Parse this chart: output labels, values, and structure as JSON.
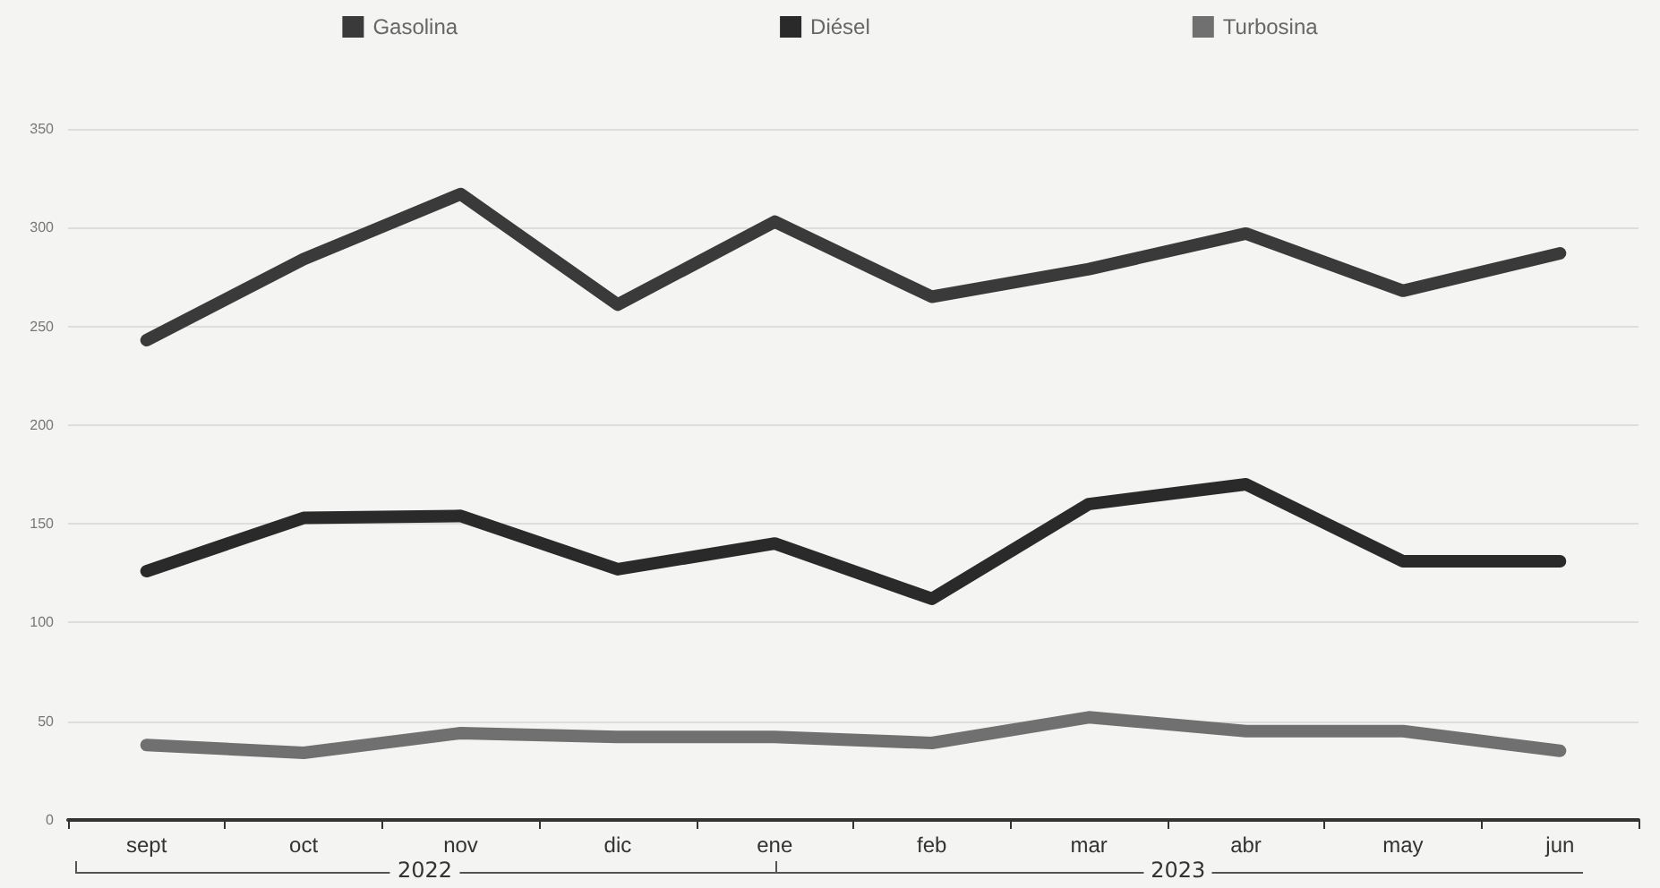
{
  "chart_data": {
    "type": "line",
    "categories": [
      "sept",
      "oct",
      "nov",
      "dic",
      "ene",
      "feb",
      "mar",
      "abr",
      "may",
      "jun"
    ],
    "series": [
      {
        "name": "Gasolina",
        "color": "#3a3a3a",
        "values": [
          243,
          284,
          317,
          261,
          303,
          265,
          279,
          297,
          268,
          287
        ]
      },
      {
        "name": "Diésel",
        "color": "#2a2a2a",
        "values": [
          126,
          153,
          154,
          127,
          140,
          112,
          160,
          170,
          131,
          131
        ]
      },
      {
        "name": "Turbosina",
        "color": "#707070",
        "values": [
          38,
          34,
          44,
          42,
          42,
          39,
          52,
          45,
          45,
          35
        ]
      }
    ],
    "ylim": [
      0,
      350
    ],
    "yticks": [
      0,
      50,
      100,
      150,
      200,
      250,
      300,
      350
    ],
    "annotations": [
      "2022",
      "2023"
    ],
    "grid": "y",
    "legend": "top",
    "line_style": "solid"
  }
}
